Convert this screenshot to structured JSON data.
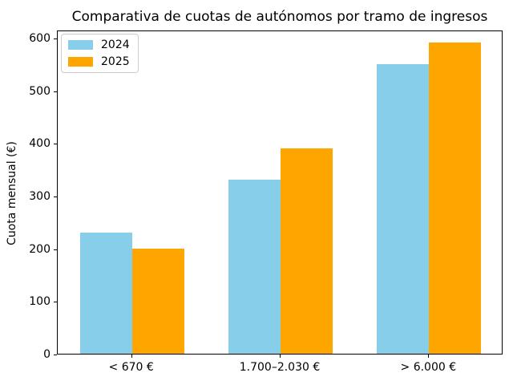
{
  "chart_data": {
    "type": "bar",
    "title": "Comparativa de cuotas de autónomos por tramo de ingresos",
    "xlabel": "",
    "ylabel": "Cuota mensual (€)",
    "categories": [
      "< 670 €",
      "1.700–2.030 €",
      "> 6.000 €"
    ],
    "series": [
      {
        "name": "2024",
        "color": "#87CEEB",
        "values": [
          230,
          330,
          550
        ]
      },
      {
        "name": "2025",
        "color": "#FFA500",
        "values": [
          200,
          390,
          590
        ]
      }
    ],
    "y_ticks": [
      0,
      100,
      200,
      300,
      400,
      500,
      600
    ],
    "ylim": [
      0,
      615
    ],
    "grid": false,
    "legend_position": "upper left"
  }
}
